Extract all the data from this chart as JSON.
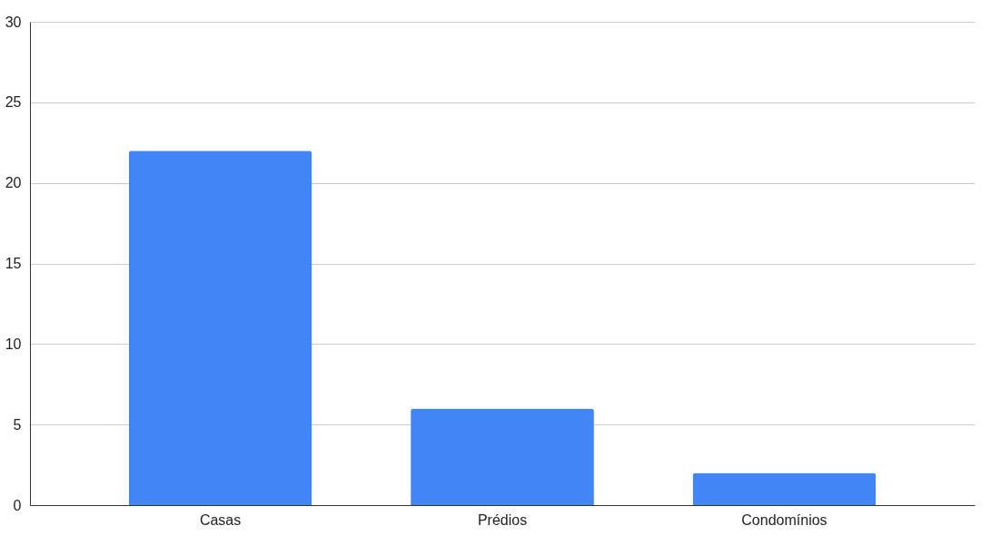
{
  "chart_data": {
    "type": "bar",
    "categories": [
      "Casas",
      "Prédios",
      "Condomínios"
    ],
    "values": [
      22,
      6,
      2
    ],
    "color": "#4285f4",
    "ylim": [
      0,
      30
    ],
    "yticks": [
      0,
      5,
      10,
      15,
      20,
      25,
      30
    ],
    "grid": "y"
  }
}
